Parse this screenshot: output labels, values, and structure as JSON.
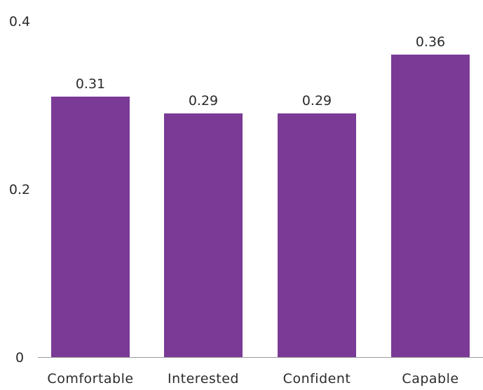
{
  "chart_data": {
    "type": "bar",
    "title": "",
    "xlabel": "",
    "ylabel": "",
    "categories": [
      "Comfortable",
      "Interested",
      "Confident",
      "Capable"
    ],
    "values": [
      0.31,
      0.29,
      0.29,
      0.36
    ],
    "data_labels": [
      "0.31",
      "0.29",
      "0.29",
      "0.36"
    ],
    "ylim": [
      0,
      0.4
    ],
    "yticks": [
      0,
      0.2,
      0.4
    ],
    "ytick_labels": [
      "0",
      "0.2",
      "0.4"
    ],
    "grid": false,
    "legend": "none",
    "bar_color": "#7b3a96",
    "text_color": "#2b2b2b",
    "axis_color": "#9a9a9a"
  }
}
